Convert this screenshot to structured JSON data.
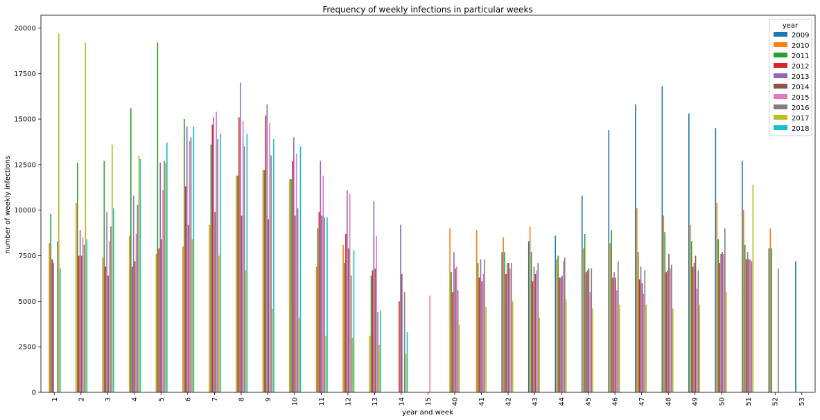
{
  "chart_data": {
    "type": "bar",
    "title": "Frequency of weekly infections in particular weeks",
    "xlabel": "year and week",
    "ylabel": "number of weekly infections",
    "ylim": [
      0,
      20700
    ],
    "yticks": [
      0,
      2500,
      5000,
      7500,
      10000,
      12500,
      15000,
      17500,
      20000
    ],
    "grid": false,
    "legend": {
      "title": "year",
      "placement": "top-right"
    },
    "categories": [
      "1",
      "2",
      "3",
      "4",
      "5",
      "6",
      "7",
      "8",
      "9",
      "10",
      "11",
      "12",
      "13",
      "14",
      "15",
      "40",
      "41",
      "42",
      "43",
      "44",
      "45",
      "46",
      "47",
      "48",
      "49",
      "50",
      "51",
      "52",
      "53"
    ],
    "series": [
      {
        "name": "2009",
        "color": "#1f77b4",
        "values": [
          0,
          0,
          0,
          0,
          0,
          0,
          0,
          0,
          0,
          0,
          0,
          0,
          0,
          0,
          0,
          0,
          0,
          7700,
          8300,
          8600,
          10800,
          14400,
          15800,
          16800,
          15300,
          14500,
          12700,
          7900,
          7200
        ]
      },
      {
        "name": "2010",
        "color": "#ff7f0e",
        "values": [
          8200,
          10400,
          7400,
          8600,
          7600,
          8000,
          9200,
          11900,
          12200,
          11700,
          6900,
          8100,
          3100,
          0,
          0,
          9000,
          8900,
          8500,
          9100,
          7300,
          7900,
          8200,
          10100,
          9700,
          9200,
          10400,
          10000,
          9000,
          0
        ]
      },
      {
        "name": "2011",
        "color": "#2ca02c",
        "values": [
          9800,
          12600,
          12700,
          15600,
          19200,
          15000,
          13600,
          11900,
          12200,
          11700,
          9000,
          7100,
          6400,
          0,
          0,
          6600,
          7100,
          7700,
          7700,
          7500,
          8700,
          8900,
          7700,
          8800,
          8300,
          8400,
          8100,
          7900,
          0
        ]
      },
      {
        "name": "2012",
        "color": "#d62728",
        "values": [
          7300,
          7500,
          6900,
          6900,
          7900,
          11300,
          14700,
          15100,
          15200,
          12700,
          9900,
          8700,
          6700,
          5000,
          0,
          5500,
          6300,
          6500,
          6100,
          6300,
          6600,
          6300,
          6200,
          6600,
          6900,
          7100,
          7300,
          0,
          0
        ]
      },
      {
        "name": "2013",
        "color": "#9467bd",
        "values": [
          7100,
          8900,
          9900,
          10800,
          12600,
          14600,
          15100,
          17000,
          15800,
          14000,
          12700,
          11100,
          10500,
          9200,
          0,
          7700,
          7300,
          7100,
          6900,
          6300,
          6700,
          6600,
          6900,
          6700,
          7100,
          7600,
          7700,
          0,
          0
        ]
      },
      {
        "name": "2014",
        "color": "#8c564b",
        "values": [
          0,
          7500,
          6400,
          7200,
          8400,
          9200,
          9900,
          9700,
          9500,
          9700,
          9700,
          7900,
          6800,
          6500,
          0,
          6800,
          6100,
          7100,
          6500,
          6400,
          6800,
          6300,
          6000,
          7600,
          7500,
          7700,
          7300,
          0,
          0
        ]
      },
      {
        "name": "2015",
        "color": "#e377c2",
        "values": [
          0,
          8500,
          8300,
          8700,
          11100,
          13800,
          15400,
          14900,
          14800,
          13100,
          11900,
          10900,
          8600,
          0,
          5300,
          6900,
          6500,
          6800,
          6700,
          7200,
          5500,
          5600,
          5400,
          6800,
          5700,
          7600,
          7300,
          0,
          0
        ]
      },
      {
        "name": "2016",
        "color": "#7f7f7f",
        "values": [
          8300,
          8100,
          9100,
          10300,
          12700,
          14000,
          13900,
          13500,
          13000,
          10100,
          9600,
          6400,
          4400,
          5500,
          0,
          5600,
          7300,
          7100,
          7100,
          7400,
          6800,
          7200,
          6700,
          7000,
          6700,
          9000,
          7200,
          6800,
          0
        ]
      },
      {
        "name": "2017",
        "color": "#bcbd22",
        "values": [
          19700,
          19200,
          13600,
          13000,
          12600,
          8400,
          7500,
          6700,
          4600,
          4100,
          3100,
          3000,
          2600,
          2100,
          0,
          3700,
          4700,
          5000,
          4100,
          5100,
          4600,
          4800,
          4800,
          4600,
          4800,
          5500,
          11400,
          0,
          0
        ]
      },
      {
        "name": "2018",
        "color": "#17becf",
        "values": [
          6800,
          8400,
          10100,
          12800,
          13700,
          14600,
          14200,
          14200,
          13900,
          13500,
          9600,
          7800,
          4500,
          3300,
          0,
          0,
          0,
          0,
          0,
          0,
          0,
          0,
          0,
          0,
          0,
          0,
          0,
          0,
          0
        ]
      }
    ]
  }
}
